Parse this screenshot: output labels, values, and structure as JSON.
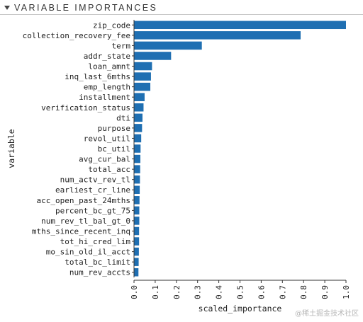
{
  "header": {
    "title": "VARIABLE IMPORTANCES"
  },
  "watermark": {
    "text": "@稀土掘金技术社区"
  },
  "colors": {
    "bar": "#1f6fb2",
    "axis": "#333333"
  },
  "chart_data": {
    "type": "bar",
    "orientation": "horizontal",
    "title": "",
    "xlabel": "scaled_importance",
    "ylabel": "variable",
    "xlim": [
      0,
      1.0
    ],
    "xticks": [
      "0.0",
      "0.1",
      "0.2",
      "0.3",
      "0.4",
      "0.5",
      "0.6",
      "0.7",
      "0.8",
      "0.9",
      "1.0"
    ],
    "grid": false,
    "categories": [
      "zip_code",
      "collection_recovery_fee",
      "term",
      "addr_state",
      "loan_amnt",
      "inq_last_6mths",
      "emp_length",
      "installment",
      "verification_status",
      "dti",
      "purpose",
      "revol_util",
      "bc_util",
      "avg_cur_bal",
      "total_acc",
      "num_actv_rev_tl",
      "earliest_cr_line",
      "acc_open_past_24mths",
      "percent_bc_gt_75",
      "num_rev_tl_bal_gt_0",
      "mths_since_recent_inq",
      "tot_hi_cred_lim",
      "mo_sin_old_il_acct",
      "total_bc_limit",
      "num_rev_accts"
    ],
    "values": [
      1.0,
      0.786,
      0.32,
      0.175,
      0.085,
      0.08,
      0.077,
      0.05,
      0.045,
      0.04,
      0.038,
      0.034,
      0.031,
      0.03,
      0.029,
      0.028,
      0.027,
      0.026,
      0.025,
      0.025,
      0.024,
      0.024,
      0.023,
      0.022,
      0.021
    ]
  }
}
